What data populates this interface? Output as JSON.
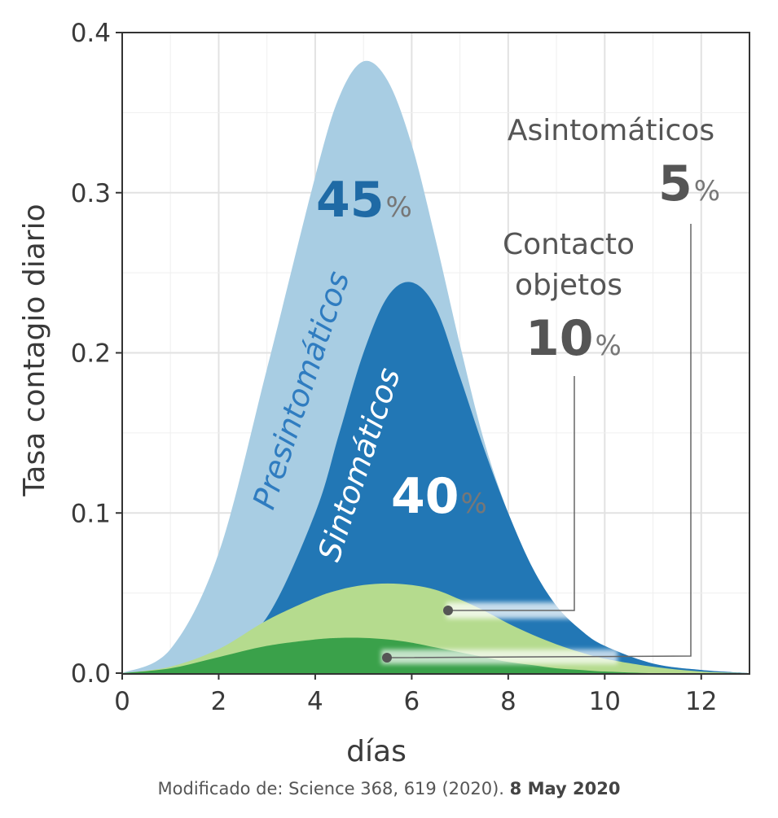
{
  "chart_data": {
    "type": "area",
    "xlabel": "días",
    "ylabel": "Tasa contagio diario",
    "xlim": [
      0,
      13
    ],
    "ylim": [
      0,
      0.4
    ],
    "xticks": [
      "0",
      "2",
      "4",
      "6",
      "8",
      "10",
      "12"
    ],
    "yticks": [
      "0.0",
      "0.1",
      "0.2",
      "0.3",
      "0.4"
    ],
    "grid": true,
    "series": [
      {
        "name": "Presintomáticos",
        "color": "#a8cde3",
        "x": [
          0,
          1,
          2,
          3,
          4,
          4.5,
          5,
          5.5,
          6,
          6.5,
          7,
          7.5,
          8,
          8.5,
          9,
          9.5,
          10,
          11,
          12,
          13
        ],
        "y": [
          0,
          0.015,
          0.075,
          0.19,
          0.31,
          0.36,
          0.382,
          0.37,
          0.33,
          0.27,
          0.205,
          0.145,
          0.1,
          0.065,
          0.042,
          0.027,
          0.017,
          0.006,
          0.002,
          0
        ]
      },
      {
        "name": "Sintomáticos",
        "color": "#2277b5",
        "x": [
          0,
          1,
          2,
          3,
          4,
          4.5,
          5,
          5.5,
          6,
          6.5,
          7,
          7.5,
          8,
          8.5,
          9,
          9.5,
          10,
          11,
          12,
          13
        ],
        "y": [
          0,
          0.002,
          0.01,
          0.035,
          0.1,
          0.15,
          0.2,
          0.235,
          0.244,
          0.228,
          0.185,
          0.14,
          0.1,
          0.066,
          0.042,
          0.027,
          0.017,
          0.006,
          0.002,
          0
        ]
      },
      {
        "name": "Contacto objetos",
        "color": "#b5db8e",
        "x": [
          0,
          1,
          2,
          3,
          4,
          4.5,
          5,
          5.5,
          6,
          6.5,
          7,
          7.5,
          8,
          8.5,
          9,
          9.5,
          10,
          11,
          12,
          13
        ],
        "y": [
          0,
          0.004,
          0.015,
          0.033,
          0.047,
          0.052,
          0.055,
          0.056,
          0.055,
          0.052,
          0.046,
          0.039,
          0.031,
          0.024,
          0.018,
          0.013,
          0.009,
          0.004,
          0.001,
          0
        ]
      },
      {
        "name": "Asintomáticos",
        "color": "#3aa14a",
        "x": [
          0,
          1,
          2,
          3,
          4,
          4.5,
          5,
          5.5,
          6,
          6.5,
          7,
          7.5,
          8,
          8.5,
          9,
          9.5,
          10,
          11,
          12,
          13
        ],
        "y": [
          0,
          0.003,
          0.01,
          0.017,
          0.021,
          0.022,
          0.022,
          0.021,
          0.019,
          0.016,
          0.013,
          0.01,
          0.007,
          0.005,
          0.003,
          0.002,
          0.001,
          0,
          0,
          0
        ]
      }
    ],
    "annotations": {
      "presintomaticos_label": "Presintomáticos",
      "presintomaticos_pct": "45",
      "sintomaticos_label": "Sintomáticos",
      "sintomaticos_pct": "40",
      "asintomaticos_label": "Asintomáticos",
      "asintomaticos_pct": "5",
      "contacto_label_line1": "Contacto",
      "contacto_label_line2": "objetos",
      "contacto_pct": "10",
      "percent_sign": "%"
    }
  },
  "source": {
    "prefix": "Modificado de:  Science 368, 619 (2020). ",
    "date": "8 May 2020"
  }
}
